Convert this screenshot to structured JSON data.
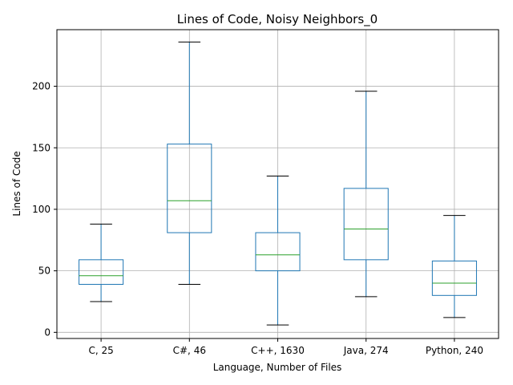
{
  "chart_data": {
    "type": "box",
    "title": "Lines of Code, Noisy Neighbors_0",
    "xlabel": "Language, Number of Files",
    "ylabel": "Lines of Code",
    "ylim": [
      -5,
      246
    ],
    "yticks": [
      0,
      50,
      100,
      150,
      200
    ],
    "grid": true,
    "categories": [
      "C, 25",
      "C#, 46",
      "C++, 1630",
      "Java, 274",
      "Python, 240"
    ],
    "boxes": [
      {
        "whisker_low": 25,
        "q1": 39,
        "median": 46,
        "q3": 59,
        "whisker_high": 88
      },
      {
        "whisker_low": 39,
        "q1": 81,
        "median": 107,
        "q3": 153,
        "whisker_high": 236
      },
      {
        "whisker_low": 6,
        "q1": 50,
        "median": 63,
        "q3": 81,
        "whisker_high": 127
      },
      {
        "whisker_low": 29,
        "q1": 59,
        "median": 84,
        "q3": 117,
        "whisker_high": 196
      },
      {
        "whisker_low": 12,
        "q1": 30,
        "median": 40,
        "q3": 58,
        "whisker_high": 95
      }
    ],
    "colors": {
      "box": "#1f77b4",
      "median": "#2ca02c",
      "cap": "#000000",
      "grid": "#b0b0b0"
    }
  }
}
